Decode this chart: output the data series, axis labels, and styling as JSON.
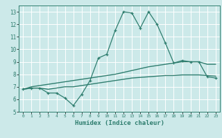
{
  "xlabel": "Humidex (Indice chaleur)",
  "ylabel": "",
  "xlim": [
    -0.5,
    23.5
  ],
  "ylim": [
    5,
    13.5
  ],
  "yticks": [
    5,
    6,
    7,
    8,
    9,
    10,
    11,
    12,
    13
  ],
  "xticks": [
    0,
    1,
    2,
    3,
    4,
    5,
    6,
    7,
    8,
    9,
    10,
    11,
    12,
    13,
    14,
    15,
    16,
    17,
    18,
    19,
    20,
    21,
    22,
    23
  ],
  "bg_color": "#cce9e9",
  "grid_color": "#ffffff",
  "line_color": "#2e7d6e",
  "line1_x": [
    0,
    1,
    2,
    3,
    4,
    5,
    6,
    7,
    8,
    9,
    10,
    11,
    12,
    13,
    14,
    15,
    16,
    17,
    18,
    19,
    20,
    21,
    22,
    23
  ],
  "line1_y": [
    6.8,
    6.9,
    6.9,
    6.5,
    6.5,
    6.1,
    5.5,
    6.4,
    7.5,
    9.3,
    9.6,
    11.5,
    13.0,
    12.9,
    11.7,
    13.0,
    12.0,
    10.5,
    8.9,
    9.1,
    9.0,
    9.0,
    7.8,
    7.7
  ],
  "line2_x": [
    0,
    1,
    2,
    3,
    4,
    5,
    6,
    7,
    8,
    9,
    10,
    11,
    12,
    13,
    14,
    15,
    16,
    17,
    18,
    19,
    20,
    21,
    22,
    23
  ],
  "line2_y": [
    6.8,
    7.0,
    7.1,
    7.2,
    7.3,
    7.4,
    7.5,
    7.6,
    7.7,
    7.8,
    7.9,
    8.0,
    8.15,
    8.3,
    8.45,
    8.6,
    8.7,
    8.8,
    8.9,
    9.0,
    9.0,
    9.0,
    8.8,
    8.8
  ],
  "line3_x": [
    0,
    1,
    2,
    3,
    4,
    5,
    6,
    7,
    8,
    9,
    10,
    11,
    12,
    13,
    14,
    15,
    16,
    17,
    18,
    19,
    20,
    21,
    22,
    23
  ],
  "line3_y": [
    6.8,
    6.9,
    6.9,
    6.8,
    6.9,
    7.0,
    7.0,
    7.1,
    7.2,
    7.3,
    7.4,
    7.5,
    7.6,
    7.7,
    7.75,
    7.8,
    7.85,
    7.9,
    7.9,
    7.95,
    7.95,
    7.95,
    7.9,
    7.85
  ]
}
